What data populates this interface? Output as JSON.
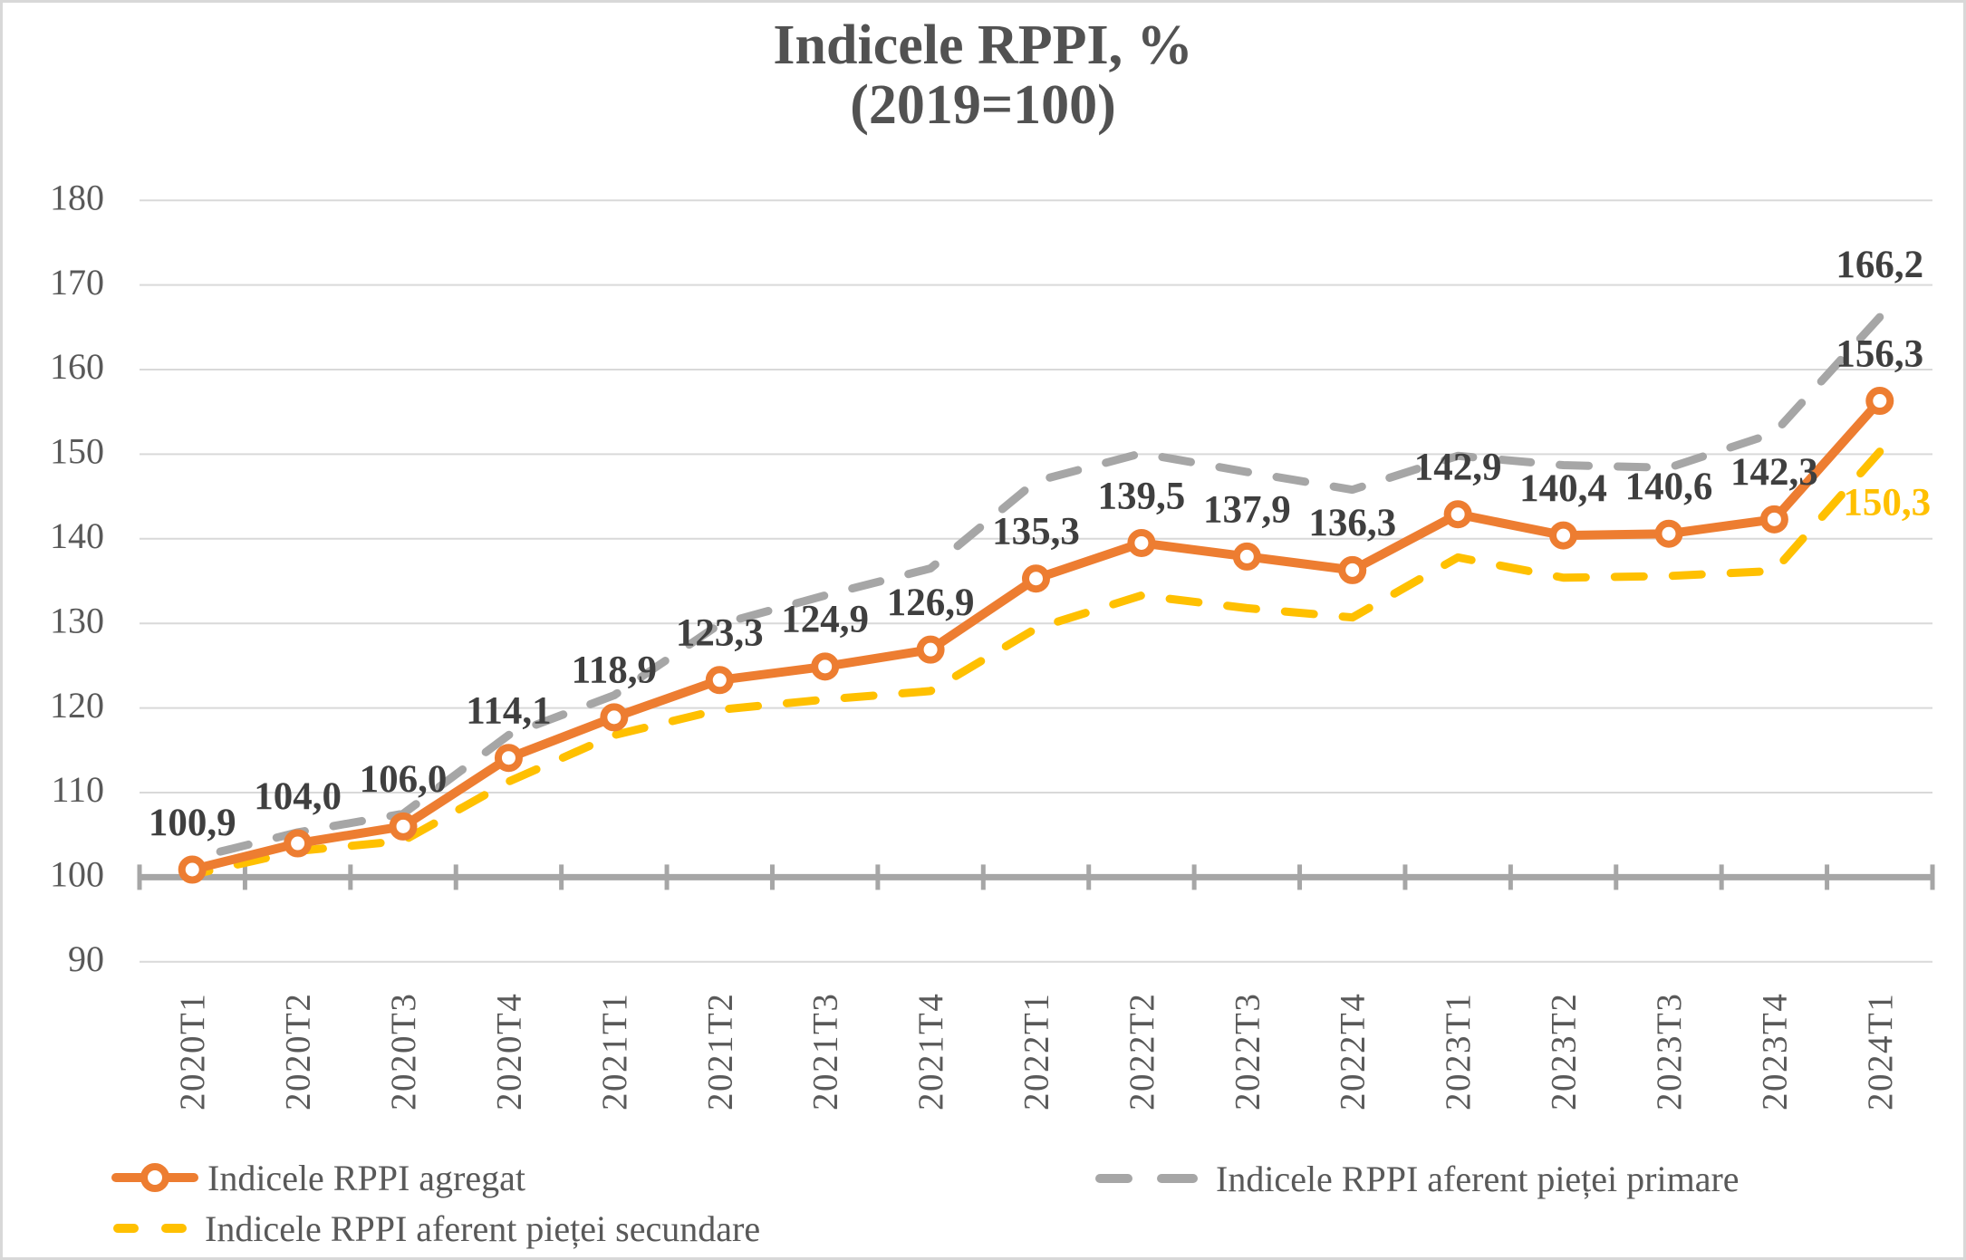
{
  "chart_data": {
    "type": "line",
    "title": "Indicele RPPI, %",
    "subtitle": "(2019=100)",
    "categories": [
      "2020T1",
      "2020T2",
      "2020T3",
      "2020T4",
      "2021T1",
      "2021T2",
      "2021T3",
      "2021T4",
      "2022T1",
      "2022T2",
      "2022T3",
      "2022T4",
      "2023T1",
      "2023T2",
      "2023T3",
      "2023T4",
      "2024T1"
    ],
    "ylim": [
      90,
      180
    ],
    "ytick_step": 10,
    "grid": "horizontal",
    "legend_position": "bottom",
    "series": [
      {
        "name": "Indicele RPPI agregat",
        "color": "#ED7D31",
        "style": "solid",
        "marker": "circle",
        "values": [
          100.9,
          104.0,
          106.0,
          114.1,
          118.9,
          123.3,
          124.9,
          126.9,
          135.3,
          139.5,
          137.9,
          136.3,
          142.9,
          140.4,
          140.6,
          142.3,
          156.3
        ],
        "point_labels": [
          "100,9",
          "104,0",
          "106,0",
          "114,1",
          "118,9",
          "123,3",
          "124,9",
          "126,9",
          "135,3",
          "139,5",
          "137,9",
          "136,3",
          "142,9",
          "140,4",
          "140,6",
          "142,3",
          "156,3"
        ]
      },
      {
        "name": "Indicele RPPI aferent pieței primare",
        "color": "#A6A6A6",
        "style": "dashed",
        "values": [
          102.2,
          105.3,
          107.5,
          116.8,
          121.5,
          129.9,
          133.3,
          136.5,
          146.8,
          150.1,
          147.9,
          145.8,
          149.8,
          148.7,
          148.4,
          152.5,
          166.2
        ],
        "end_label": "166,2"
      },
      {
        "name": "Indicele RPPI aferent pieței secundare",
        "color": "#FFC000",
        "style": "dashed",
        "values": [
          100.3,
          103.1,
          104.3,
          111.3,
          116.8,
          119.8,
          121.0,
          122.0,
          129.4,
          133.3,
          131.8,
          130.7,
          137.8,
          135.4,
          135.6,
          136.2,
          150.3
        ],
        "end_label": "150,3"
      }
    ],
    "axis_color": "#A6A6A6",
    "gridline_color": "#D9D9D9",
    "tick_label_color": "#595959",
    "data_label_color": "#3F3F3F",
    "y_tick_labels": [
      "90",
      "100",
      "110",
      "120",
      "130",
      "140",
      "150",
      "160",
      "170",
      "180"
    ]
  }
}
